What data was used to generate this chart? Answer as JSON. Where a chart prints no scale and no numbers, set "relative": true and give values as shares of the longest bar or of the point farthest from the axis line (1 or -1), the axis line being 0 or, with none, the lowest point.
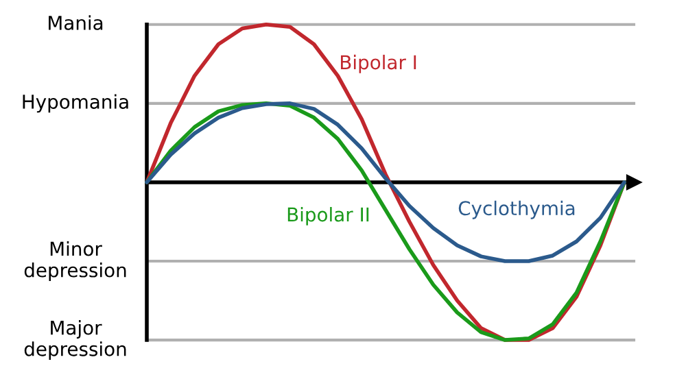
{
  "chart_data": {
    "type": "line",
    "relative": true,
    "categories": [
      null,
      null,
      null,
      null,
      null,
      null,
      null,
      null,
      null,
      null,
      null,
      null,
      null,
      null,
      null,
      null,
      null,
      null,
      null,
      null,
      null
    ],
    "series": [
      {
        "name": "Bipolar I",
        "color": "#c1272d",
        "values": [
          0,
          0.375,
          0.675,
          0.875,
          0.975,
          1,
          0.985,
          0.875,
          0.675,
          0.4,
          0.05,
          -0.25,
          -0.525,
          -0.75,
          -0.925,
          -1,
          -1,
          -0.925,
          -0.725,
          -0.4,
          0
        ]
      },
      {
        "name": "Bipolar II",
        "color": "#1a9a1a",
        "values": [
          0,
          0.2,
          0.35,
          0.45,
          0.49,
          0.5,
          0.485,
          0.41,
          0.275,
          0.075,
          -0.175,
          -0.425,
          -0.65,
          -0.825,
          -0.95,
          -1,
          -0.99,
          -0.9,
          -0.7,
          -0.375,
          0
        ]
      },
      {
        "name": "Cyclothymia",
        "color": "#2b5a8c",
        "values": [
          0,
          0.175,
          0.31,
          0.41,
          0.47,
          0.495,
          0.5,
          0.465,
          0.365,
          0.215,
          0.025,
          -0.15,
          -0.29,
          -0.4,
          -0.47,
          -0.5,
          -0.5,
          -0.465,
          -0.375,
          -0.225,
          0
        ]
      }
    ],
    "ref_lines": [
      {
        "axis": "y",
        "value": 1,
        "label": "Mania",
        "color": "#b0b0b0"
      },
      {
        "axis": "y",
        "value": 0.5,
        "label": "Hypomania",
        "color": "#b0b0b0"
      },
      {
        "axis": "y",
        "value": -0.5,
        "label": "Minor\ndepression",
        "color": "#b0b0b0"
      },
      {
        "axis": "y",
        "value": -1,
        "label": "Major\ndepression",
        "color": "#b0b0b0"
      }
    ]
  }
}
